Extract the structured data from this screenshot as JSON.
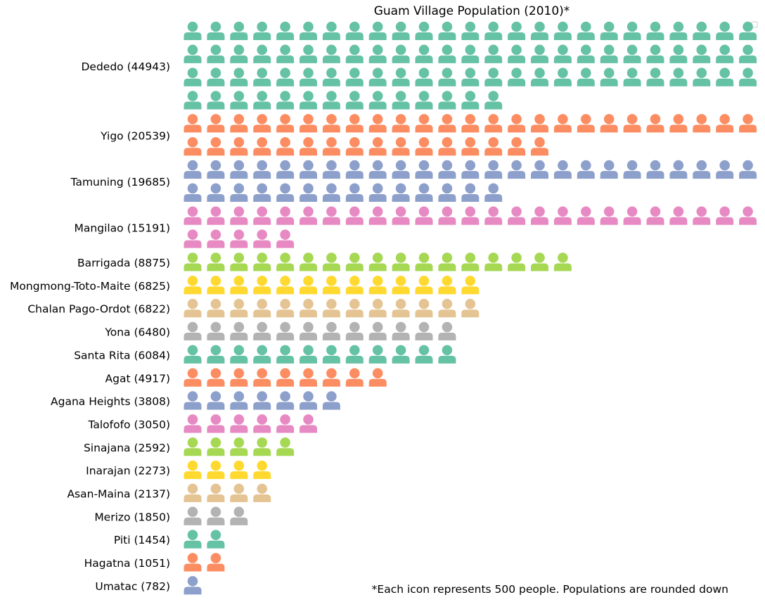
{
  "chart_data": {
    "type": "pictogram",
    "title": "Guam Village Population (2010)*",
    "footnote": "*Each icon represents 500 people. Populations are rounded down",
    "unit_per_icon": 500,
    "icons_per_row": 25,
    "icon": "person-icon",
    "legend": "top-right",
    "palette": [
      "#66c2a5",
      "#fc8d62",
      "#8da0cb",
      "#e78ac3",
      "#a6d854",
      "#ffd92f",
      "#e5c494",
      "#b3b3b3"
    ],
    "villages": [
      {
        "name": "Dededo",
        "population": 44943,
        "label": "Dededo (44943)"
      },
      {
        "name": "Yigo",
        "population": 20539,
        "label": "Yigo (20539)"
      },
      {
        "name": "Tamuning",
        "population": 19685,
        "label": "Tamuning (19685)"
      },
      {
        "name": "Mangilao",
        "population": 15191,
        "label": "Mangilao (15191)"
      },
      {
        "name": "Barrigada",
        "population": 8875,
        "label": "Barrigada (8875)"
      },
      {
        "name": "Mongmong-Toto-Maite",
        "population": 6825,
        "label": "Mongmong-Toto-Maite (6825)"
      },
      {
        "name": "Chalan Pago-Ordot",
        "population": 6822,
        "label": "Chalan Pago-Ordot (6822)"
      },
      {
        "name": "Yona",
        "population": 6480,
        "label": "Yona (6480)"
      },
      {
        "name": "Santa Rita",
        "population": 6084,
        "label": "Santa Rita (6084)"
      },
      {
        "name": "Agat",
        "population": 4917,
        "label": "Agat (4917)"
      },
      {
        "name": "Agana Heights",
        "population": 3808,
        "label": "Agana Heights (3808)"
      },
      {
        "name": "Talofofo",
        "population": 3050,
        "label": "Talofofo (3050)"
      },
      {
        "name": "Sinajana",
        "population": 2592,
        "label": "Sinajana (2592)"
      },
      {
        "name": "Inarajan",
        "population": 2273,
        "label": "Inarajan (2273)"
      },
      {
        "name": "Asan-Maina",
        "population": 2137,
        "label": "Asan-Maina (2137)"
      },
      {
        "name": "Merizo",
        "population": 1850,
        "label": "Merizo (1850)"
      },
      {
        "name": "Piti",
        "population": 1454,
        "label": "Piti (1454)"
      },
      {
        "name": "Hagatna",
        "population": 1051,
        "label": "Hagatna (1051)"
      },
      {
        "name": "Umatac",
        "population": 782,
        "label": "Umatac (782)"
      }
    ]
  }
}
